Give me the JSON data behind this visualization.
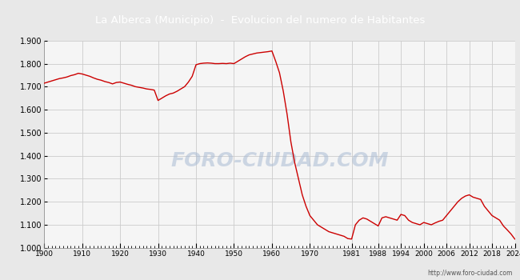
{
  "title": "La Alberca (Municipio)  -  Evolucion del numero de Habitantes",
  "title_bg_color": "#4a7fd4",
  "title_text_color": "#ffffff",
  "line_color": "#cc0000",
  "bg_color": "#e8e8e8",
  "plot_bg_color": "#f5f5f5",
  "grid_color": "#cccccc",
  "border_color": "#4a7fd4",
  "watermark": "FORO-CIUDAD.COM",
  "url_text": "http://www.foro-ciudad.com",
  "ylim": [
    1000,
    1900
  ],
  "yticks": [
    1000,
    1100,
    1200,
    1300,
    1400,
    1500,
    1600,
    1700,
    1800,
    1900
  ],
  "ytick_labels": [
    "1.000",
    "1.100",
    "1.200",
    "1.300",
    "1.400",
    "1.500",
    "1.600",
    "1.700",
    "1.800",
    "1.900"
  ],
  "xtick_labels": [
    "1900",
    "1910",
    "1920",
    "1930",
    "1940",
    "1950",
    "1960",
    "1970",
    "1981",
    "1988",
    "1994",
    "2000",
    "2006",
    "2012",
    "2018",
    "2024"
  ],
  "years": [
    1900,
    1901,
    1902,
    1903,
    1904,
    1905,
    1906,
    1907,
    1908,
    1909,
    1910,
    1911,
    1912,
    1913,
    1914,
    1915,
    1916,
    1917,
    1918,
    1919,
    1920,
    1921,
    1922,
    1923,
    1924,
    1925,
    1926,
    1927,
    1928,
    1929,
    1930,
    1931,
    1932,
    1933,
    1934,
    1935,
    1936,
    1937,
    1938,
    1939,
    1940,
    1941,
    1942,
    1943,
    1944,
    1945,
    1946,
    1947,
    1948,
    1949,
    1950,
    1951,
    1952,
    1953,
    1954,
    1955,
    1956,
    1957,
    1958,
    1959,
    1960,
    1961,
    1962,
    1963,
    1964,
    1965,
    1966,
    1967,
    1968,
    1969,
    1970,
    1971,
    1972,
    1973,
    1974,
    1975,
    1976,
    1977,
    1978,
    1979,
    1980,
    1981,
    1982,
    1983,
    1984,
    1985,
    1986,
    1987,
    1988,
    1989,
    1990,
    1991,
    1992,
    1993,
    1994,
    1995,
    1996,
    1997,
    1998,
    1999,
    2000,
    2001,
    2002,
    2003,
    2004,
    2005,
    2006,
    2007,
    2008,
    2009,
    2010,
    2011,
    2012,
    2013,
    2014,
    2015,
    2016,
    2017,
    2018,
    2019,
    2020,
    2021,
    2022,
    2023,
    2024
  ],
  "population": [
    1715,
    1720,
    1725,
    1730,
    1735,
    1738,
    1742,
    1748,
    1752,
    1758,
    1755,
    1750,
    1745,
    1738,
    1732,
    1728,
    1722,
    1718,
    1712,
    1718,
    1720,
    1715,
    1710,
    1706,
    1700,
    1697,
    1694,
    1690,
    1688,
    1685,
    1640,
    1650,
    1660,
    1668,
    1672,
    1680,
    1690,
    1700,
    1720,
    1745,
    1795,
    1800,
    1802,
    1803,
    1802,
    1800,
    1800,
    1801,
    1800,
    1802,
    1800,
    1810,
    1820,
    1830,
    1838,
    1842,
    1846,
    1848,
    1850,
    1852,
    1855,
    1810,
    1760,
    1680,
    1580,
    1460,
    1370,
    1300,
    1230,
    1180,
    1140,
    1120,
    1100,
    1090,
    1080,
    1070,
    1065,
    1060,
    1055,
    1050,
    1040,
    1038,
    1100,
    1120,
    1130,
    1125,
    1115,
    1105,
    1095,
    1130,
    1135,
    1130,
    1125,
    1120,
    1145,
    1140,
    1120,
    1110,
    1105,
    1100,
    1110,
    1105,
    1100,
    1108,
    1115,
    1120,
    1140,
    1160,
    1180,
    1200,
    1215,
    1225,
    1230,
    1220,
    1215,
    1210,
    1180,
    1160,
    1140,
    1130,
    1120,
    1095,
    1078,
    1060,
    1038
  ]
}
